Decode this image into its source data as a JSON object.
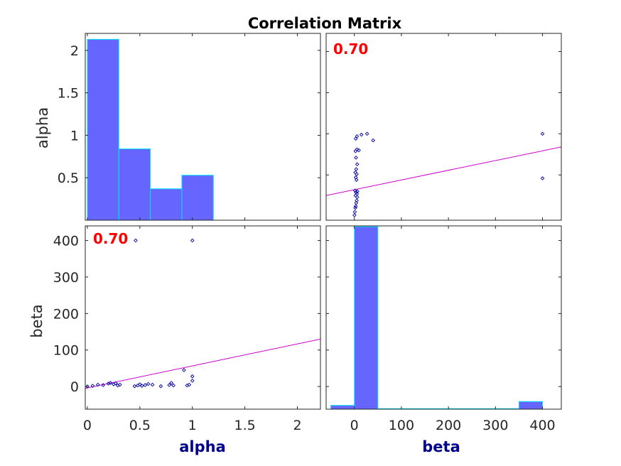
{
  "chart_data": {
    "type": "scatter",
    "title": "Correlation Matrix",
    "variables": [
      "alpha",
      "beta"
    ],
    "correlation": "0.70",
    "colors": {
      "hist_fill": "#6666ff",
      "hist_edge": "#00e5ff",
      "points": "#0000a0",
      "fit_line": "#cc00cc",
      "corr_text": "#ff0000",
      "var_label": "#00008b"
    },
    "panels": {
      "alpha_hist": {
        "type": "histogram",
        "xlim": [
          -0.02,
          2.22
        ],
        "ylim": [
          0,
          2.2
        ],
        "yticks": [
          0.5,
          1,
          1.5,
          2
        ],
        "ytick_labels": [
          "0.5",
          "1",
          "1.5",
          "2"
        ],
        "bins": [
          {
            "x0": 0.0,
            "x1": 0.3,
            "value": 2.13
          },
          {
            "x0": 0.3,
            "x1": 0.6,
            "value": 0.84
          },
          {
            "x0": 0.6,
            "x1": 0.9,
            "value": 0.37
          },
          {
            "x0": 0.9,
            "x1": 1.2,
            "value": 0.53
          }
        ]
      },
      "beta_hist": {
        "type": "histogram",
        "xlim": [
          -60,
          440
        ],
        "ylim": [
          0,
          480
        ],
        "xticks": [
          0,
          100,
          200,
          300,
          400
        ],
        "xtick_labels": [
          "0",
          "100",
          "200",
          "300",
          "400"
        ],
        "bins": [
          {
            "x0": -50,
            "x1": 0,
            "value": 10
          },
          {
            "x0": 0,
            "x1": 50,
            "value": 478
          },
          {
            "x0": 50,
            "x1": 350,
            "value": 0
          },
          {
            "x0": 350,
            "x1": 400,
            "value": 20
          }
        ]
      },
      "scatter_beta_vs_alpha": {
        "type": "scatter",
        "x_variable": "beta",
        "y_variable": "alpha",
        "xlim": [
          -60,
          440
        ],
        "ylim": [
          -0.05,
          2.22
        ],
        "fit": {
          "x": [
            -60,
            440
          ],
          "y": [
            0.25,
            0.84
          ]
        },
        "points": [
          [
            0.2,
            0.01
          ],
          [
            1.0,
            0.05
          ],
          [
            2.0,
            0.1
          ],
          [
            3.0,
            0.12
          ],
          [
            4.0,
            0.16
          ],
          [
            5.0,
            0.19
          ],
          [
            6.0,
            0.23
          ],
          [
            2.5,
            0.25
          ],
          [
            5.5,
            0.27
          ],
          [
            3.5,
            0.29
          ],
          [
            6.5,
            0.3
          ],
          [
            1.5,
            0.31
          ],
          [
            4.5,
            0.44
          ],
          [
            3.0,
            0.47
          ],
          [
            5.0,
            0.51
          ],
          [
            2.0,
            0.53
          ],
          [
            4.0,
            0.57
          ],
          [
            6.0,
            0.63
          ],
          [
            3.5,
            0.71
          ],
          [
            2.5,
            0.79
          ],
          [
            5.5,
            0.81
          ],
          [
            9.5,
            0.8
          ],
          [
            3.0,
            0.94
          ],
          [
            5.5,
            0.97
          ],
          [
            15.0,
            0.99
          ],
          [
            27.0,
            1.0
          ],
          [
            40.0,
            0.92
          ],
          [
            400.0,
            1.0
          ],
          [
            400.0,
            0.46
          ]
        ]
      },
      "scatter_alpha_vs_beta": {
        "type": "scatter",
        "x_variable": "alpha",
        "y_variable": "beta",
        "xlim": [
          -0.02,
          2.22
        ],
        "ylim": [
          -62,
          440
        ],
        "xticks": [
          0,
          0.5,
          1,
          1.5,
          2
        ],
        "xtick_labels": [
          "0",
          "0.5",
          "1",
          "1.5",
          "2"
        ],
        "yticks": [
          0,
          100,
          200,
          300,
          400
        ],
        "ytick_labels": [
          "0",
          "100",
          "200",
          "300",
          "400"
        ],
        "fit": {
          "x": [
            -0.02,
            2.22
          ],
          "y": [
            -5,
            130
          ]
        },
        "points": [
          [
            0.0,
            0.2
          ],
          [
            0.05,
            2
          ],
          [
            0.1,
            5
          ],
          [
            0.15,
            4
          ],
          [
            0.2,
            8
          ],
          [
            0.22,
            10
          ],
          [
            0.25,
            6
          ],
          [
            0.27,
            9
          ],
          [
            0.29,
            3
          ],
          [
            0.31,
            5
          ],
          [
            0.45,
            1
          ],
          [
            0.48,
            3
          ],
          [
            0.5,
            6
          ],
          [
            0.52,
            2
          ],
          [
            0.55,
            4
          ],
          [
            0.58,
            7
          ],
          [
            0.62,
            5
          ],
          [
            0.7,
            1
          ],
          [
            0.78,
            4
          ],
          [
            0.8,
            10
          ],
          [
            0.82,
            3
          ],
          [
            0.92,
            45
          ],
          [
            0.95,
            3
          ],
          [
            0.97,
            5
          ],
          [
            1.0,
            16
          ],
          [
            1.0,
            28
          ],
          [
            0.46,
            400
          ],
          [
            1.0,
            400
          ]
        ]
      }
    }
  }
}
